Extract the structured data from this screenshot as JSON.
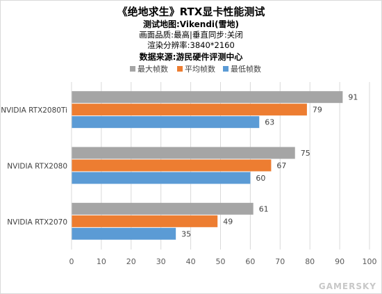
{
  "chart_data": {
    "type": "bar",
    "orientation": "horizontal",
    "title": "《绝地求生》RTX显卡性能测试",
    "subtitle_lines": [
      "测试地图:Vikendi(雪地)",
      "画面品质:最高|垂直同步:关闭",
      "渲染分辨率:3840*2160",
      "数据来源:游民硬件评测中心"
    ],
    "categories": [
      "NVIDIA RTX2080Ti",
      "NVIDIA RTX2080",
      "NVIDIA RTX2070"
    ],
    "series": [
      {
        "name": "最大帧数",
        "color": "#a5a5a5",
        "values": [
          91,
          75,
          61
        ]
      },
      {
        "name": "平均帧数",
        "color": "#ed7d31",
        "values": [
          79,
          67,
          49
        ]
      },
      {
        "name": "最低帧数",
        "color": "#5b9bd5",
        "values": [
          63,
          60,
          35
        ]
      }
    ],
    "xlim": [
      0,
      100
    ],
    "xticks": [
      0,
      10,
      20,
      30,
      40,
      50,
      60,
      70,
      80,
      90,
      100
    ],
    "grid": true,
    "legend_position": "top-center",
    "data_labels": true
  },
  "watermark": "GAMERSKY"
}
